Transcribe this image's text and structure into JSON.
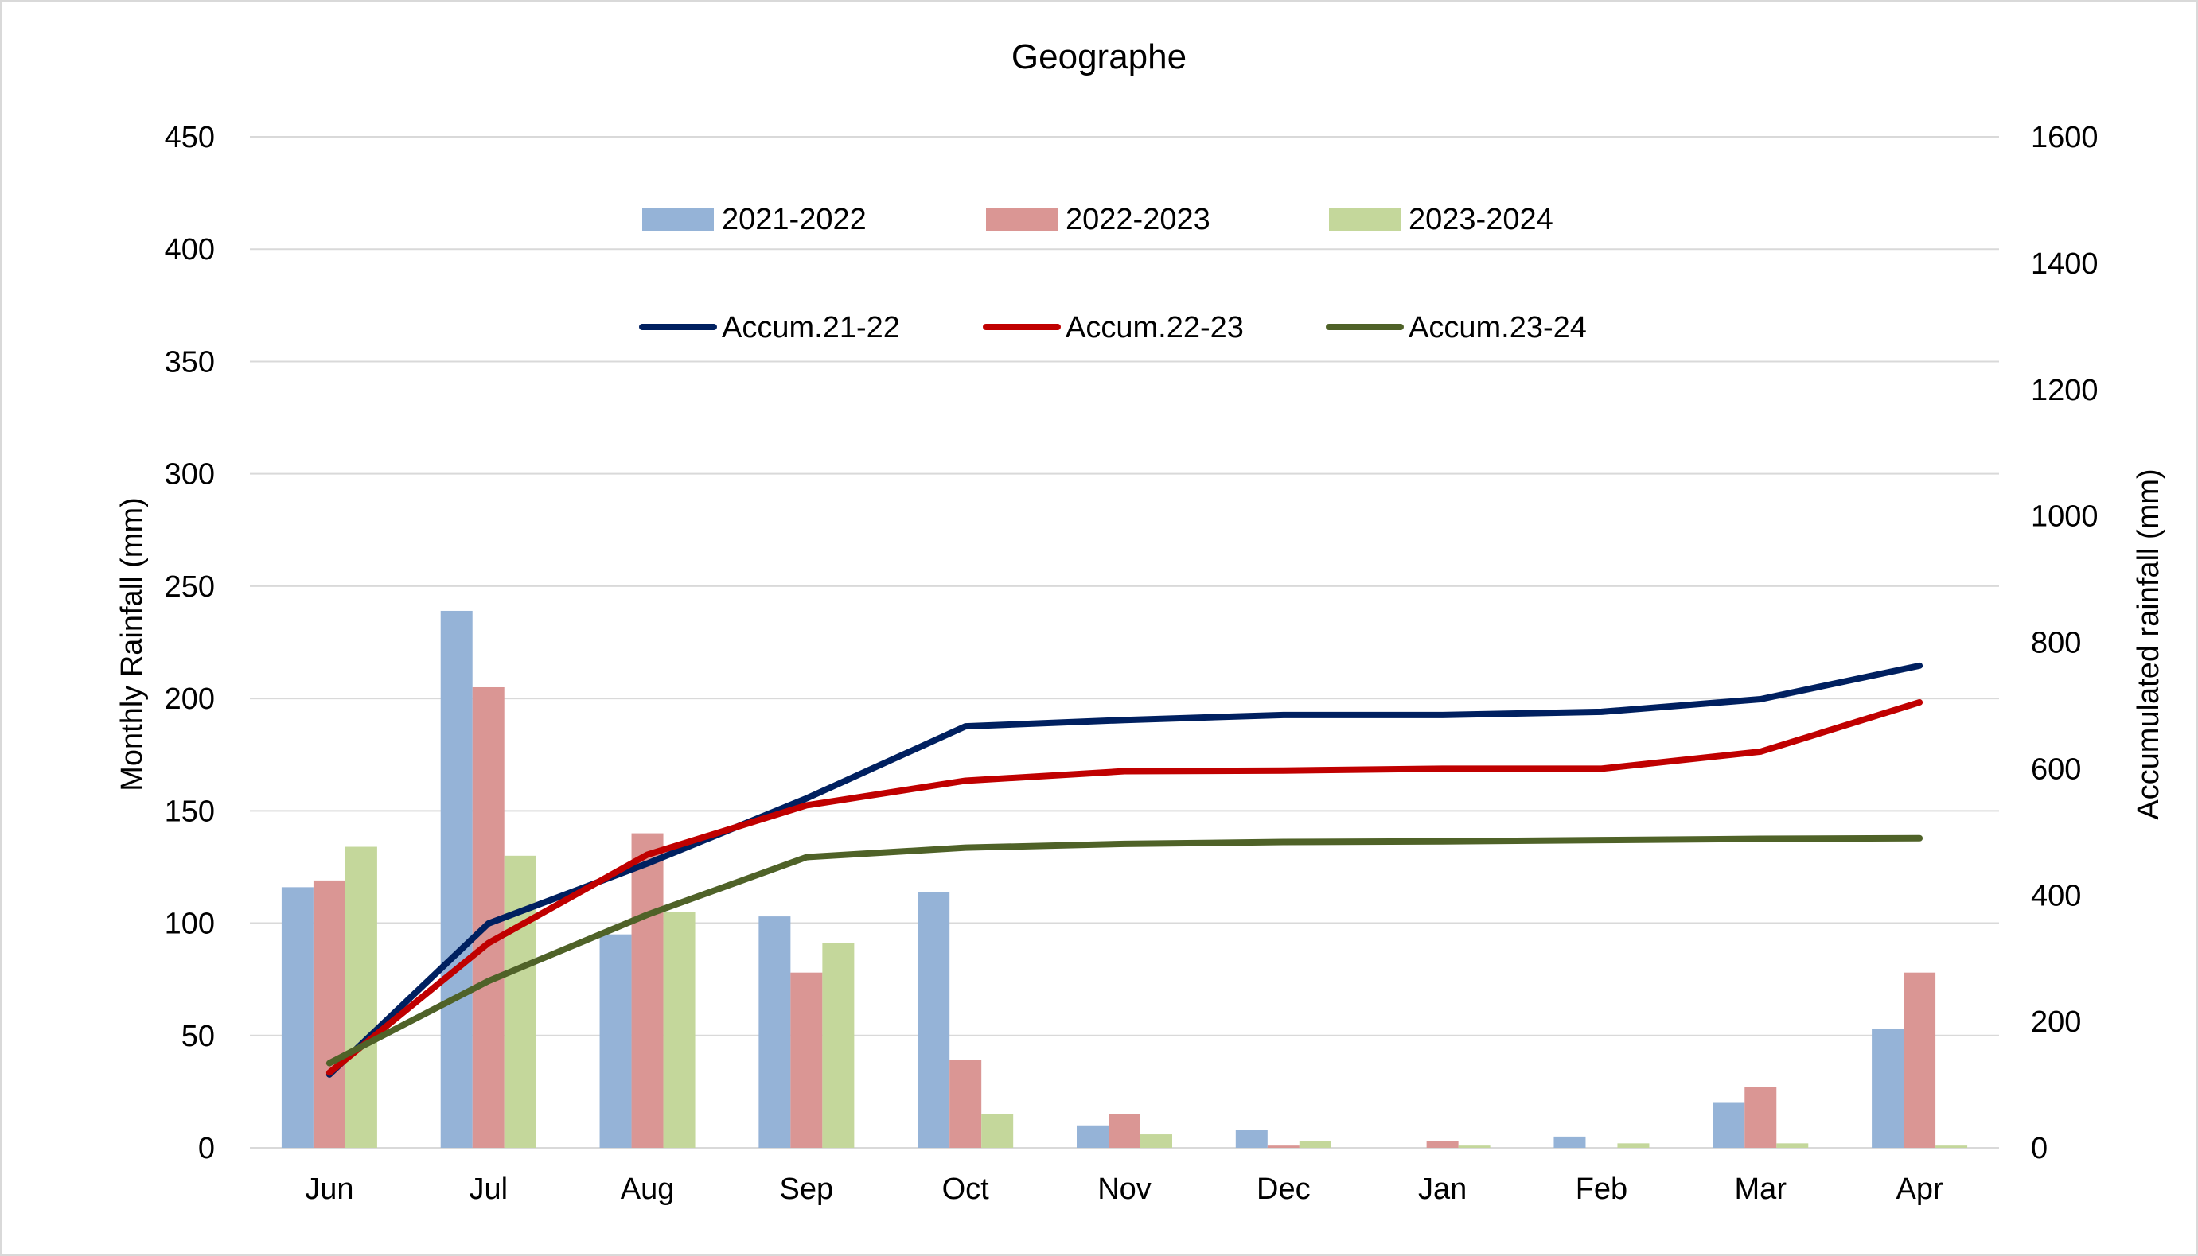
{
  "chart_data": {
    "type": "bar",
    "title": "Geographe",
    "categories": [
      "Jun",
      "Jul",
      "Aug",
      "Sep",
      "Oct",
      "Nov",
      "Dec",
      "Jan",
      "Feb",
      "Mar",
      "Apr"
    ],
    "ylabel": "Monthly Rainfall (mm)",
    "y2label": "Accumulated rainfall (mm)",
    "ylim": [
      0,
      450
    ],
    "y2lim": [
      0,
      1600
    ],
    "yticks": [
      0,
      50,
      100,
      150,
      200,
      250,
      300,
      350,
      400,
      450
    ],
    "y2ticks": [
      0,
      200,
      400,
      600,
      800,
      1000,
      1200,
      1400,
      1600
    ],
    "grid": true,
    "legend_position": "top",
    "bar_series": [
      {
        "name": "2021-2022",
        "color": "#95b3d7",
        "values": [
          116,
          239,
          95,
          103,
          114,
          10,
          8,
          0,
          5,
          20,
          53
        ]
      },
      {
        "name": "2022-2023",
        "color": "#da9694",
        "values": [
          119,
          205,
          140,
          78,
          39,
          15,
          1,
          3,
          0,
          27,
          78
        ]
      },
      {
        "name": "2023-2024",
        "color": "#c4d79b",
        "values": [
          134,
          130,
          105,
          91,
          15,
          6,
          3,
          1,
          2,
          2,
          1
        ]
      }
    ],
    "line_series": [
      {
        "name": "Accum.21-22",
        "color": "#002060",
        "axis": "right",
        "values": [
          116,
          355,
          450,
          553,
          667,
          677,
          685,
          685,
          690,
          710,
          763
        ]
      },
      {
        "name": "Accum.22-23",
        "color": "#c00000",
        "axis": "right",
        "values": [
          119,
          324,
          464,
          542,
          581,
          596,
          597,
          600,
          600,
          627,
          705
        ]
      },
      {
        "name": "Accum.23-24",
        "color": "#4f6228",
        "axis": "right",
        "values": [
          134,
          264,
          369,
          460,
          475,
          481,
          484,
          485,
          487,
          489,
          490
        ]
      }
    ]
  }
}
